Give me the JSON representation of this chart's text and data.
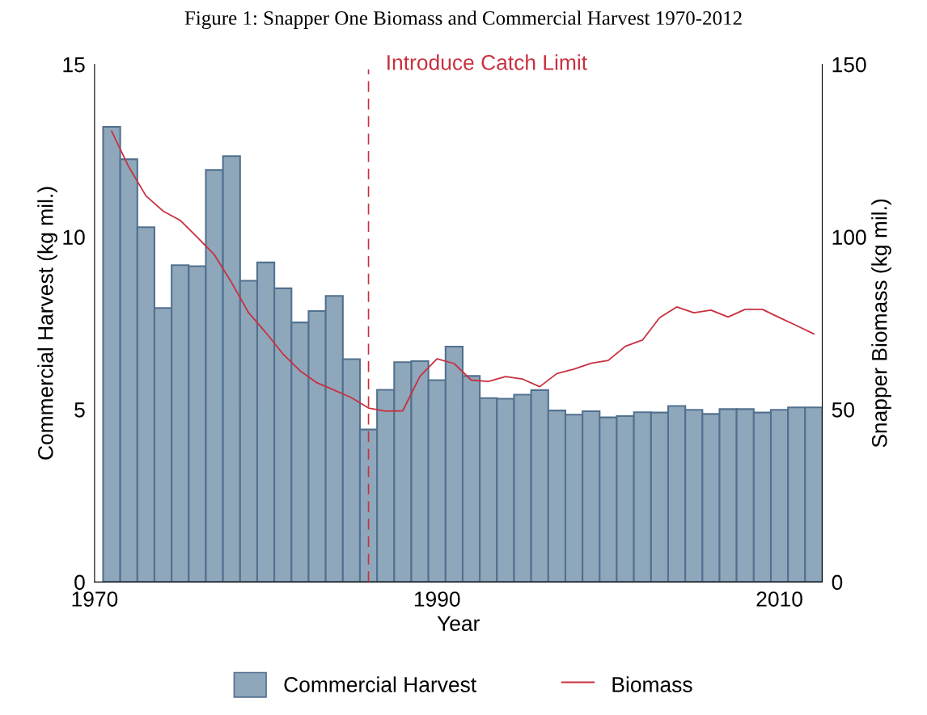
{
  "chart_data": {
    "type": "bar",
    "title": "Figure 1: Snapper One Biomass and Commercial Harvest 1970-2012",
    "xlabel": "Year",
    "ylabel": "Commercial Harvest (kg mil.)",
    "y2label": "Snapper Biomass (kg mil.)",
    "x": [
      1971,
      1972,
      1973,
      1974,
      1975,
      1976,
      1977,
      1978,
      1979,
      1980,
      1981,
      1982,
      1983,
      1984,
      1985,
      1986,
      1987,
      1988,
      1989,
      1990,
      1991,
      1992,
      1993,
      1994,
      1995,
      1996,
      1997,
      1998,
      1999,
      2000,
      2001,
      2002,
      2003,
      2004,
      2005,
      2006,
      2007,
      2008,
      2009,
      2010,
      2011,
      2012
    ],
    "series": [
      {
        "name": "Commercial Harvest",
        "color": "#8fa7bb",
        "values": [
          13.19,
          12.25,
          10.28,
          7.94,
          9.18,
          9.15,
          11.94,
          12.34,
          8.73,
          9.26,
          8.51,
          7.52,
          7.85,
          8.29,
          6.46,
          4.42,
          5.57,
          6.37,
          6.4,
          5.85,
          6.82,
          5.97,
          5.33,
          5.31,
          5.43,
          5.56,
          4.97,
          4.85,
          4.95,
          4.77,
          4.81,
          4.92,
          4.91,
          5.1,
          4.99,
          4.87,
          5.01,
          5.01,
          4.91,
          4.99,
          5.06,
          5.06
        ]
      },
      {
        "name": "Biomass",
        "type": "line",
        "axis": "y2",
        "color": "#c8303f",
        "values": [
          130.6,
          120.3,
          111.9,
          107.5,
          104.8,
          99.9,
          94.8,
          86.8,
          78.0,
          72.3,
          66.1,
          61.2,
          57.7,
          55.6,
          53.4,
          50.4,
          49.5,
          49.6,
          59.6,
          64.7,
          63.3,
          58.5,
          58.1,
          59.5,
          58.8,
          56.6,
          60.4,
          61.7,
          63.4,
          64.2,
          68.3,
          70.1,
          76.6,
          79.7,
          78.0,
          78.8,
          76.8,
          79.0,
          79.0,
          76.6,
          74.3,
          71.9
        ]
      }
    ],
    "xlim": [
      1970,
      2012.5
    ],
    "xticks": [
      1970,
      1990,
      2010
    ],
    "ylim": [
      0,
      15
    ],
    "yticks": [
      0,
      5,
      10,
      15
    ],
    "y2lim": [
      0,
      150
    ],
    "y2ticks": [
      0,
      50,
      100,
      150
    ],
    "ref_lines": [
      {
        "axis": "x",
        "value": 1986,
        "label": "Introduce Catch Limit",
        "color": "#c8303f",
        "line_style": "dashed"
      }
    ],
    "legend": "bottom",
    "grid": false
  }
}
